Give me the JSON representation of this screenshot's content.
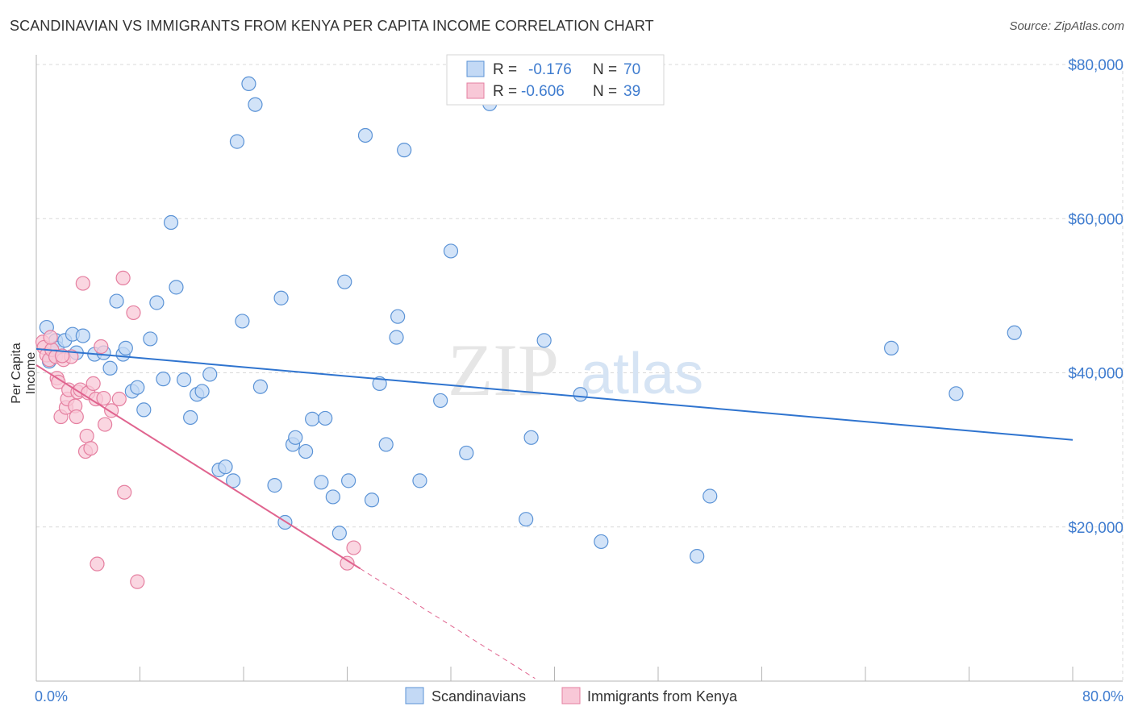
{
  "header": {
    "title": "SCANDINAVIAN VS IMMIGRANTS FROM KENYA PER CAPITA INCOME CORRELATION CHART",
    "source": "Source: ZipAtlas.com"
  },
  "watermark": {
    "zip": "ZIP",
    "atlas": "atlas"
  },
  "colors": {
    "blue_fill": "#c3d9f5",
    "blue_stroke": "#5b93d6",
    "blue_line": "#2f74cf",
    "pink_fill": "#f8c8d7",
    "pink_stroke": "#e57fa0",
    "pink_line": "#e0648f",
    "axis_text": "#3f7ccf",
    "grid": "#d9d9d9"
  },
  "legend": {
    "rows": [
      {
        "r_label": "R =",
        "r_value": "-0.176",
        "n_label": "N =",
        "n_value": "70"
      },
      {
        "r_label": "R =",
        "r_value": "-0.606",
        "n_label": "N =",
        "n_value": "39"
      }
    ]
  },
  "chart_data": {
    "type": "scatter",
    "title": "SCANDINAVIAN VS IMMIGRANTS FROM KENYA PER CAPITA INCOME CORRELATION CHART",
    "xlabel": "",
    "ylabel": "Per Capita Income",
    "xlim": [
      0,
      80
    ],
    "ylim": [
      0,
      80000
    ],
    "x_tick_labels": [
      "0.0%",
      "80.0%"
    ],
    "y_ticks": [
      20000,
      40000,
      60000,
      80000
    ],
    "y_tick_labels": [
      "$20,000",
      "$40,000",
      "$60,000",
      "$80,000"
    ],
    "grid": true,
    "legend_position": "top-center",
    "series": [
      {
        "name": "Scandinavians",
        "points": [
          [
            0.8,
            45900
          ],
          [
            1.0,
            41500
          ],
          [
            1.5,
            44200
          ],
          [
            1.6,
            43200
          ],
          [
            2.2,
            44200
          ],
          [
            2.8,
            45000
          ],
          [
            3.1,
            42600
          ],
          [
            3.6,
            44800
          ],
          [
            4.5,
            42400
          ],
          [
            5.2,
            42600
          ],
          [
            5.7,
            40600
          ],
          [
            6.2,
            49300
          ],
          [
            6.7,
            42400
          ],
          [
            6.9,
            43200
          ],
          [
            7.4,
            37600
          ],
          [
            7.8,
            38100
          ],
          [
            8.3,
            35200
          ],
          [
            8.8,
            44400
          ],
          [
            9.3,
            49100
          ],
          [
            9.8,
            39200
          ],
          [
            10.4,
            59500
          ],
          [
            10.8,
            51100
          ],
          [
            11.4,
            39100
          ],
          [
            11.9,
            34200
          ],
          [
            12.4,
            37200
          ],
          [
            12.8,
            37600
          ],
          [
            13.4,
            39800
          ],
          [
            14.1,
            27400
          ],
          [
            14.6,
            27800
          ],
          [
            15.2,
            26000
          ],
          [
            15.5,
            70000
          ],
          [
            15.9,
            46700
          ],
          [
            16.4,
            77500
          ],
          [
            16.9,
            74800
          ],
          [
            17.3,
            38200
          ],
          [
            18.4,
            25400
          ],
          [
            18.9,
            49700
          ],
          [
            19.2,
            20600
          ],
          [
            19.8,
            30700
          ],
          [
            20.0,
            31600
          ],
          [
            20.8,
            29800
          ],
          [
            21.3,
            34000
          ],
          [
            22.0,
            25800
          ],
          [
            22.3,
            34100
          ],
          [
            22.9,
            23900
          ],
          [
            23.4,
            19200
          ],
          [
            23.8,
            51800
          ],
          [
            24.1,
            26000
          ],
          [
            25.4,
            70800
          ],
          [
            25.9,
            23500
          ],
          [
            26.5,
            38600
          ],
          [
            27.0,
            30700
          ],
          [
            27.8,
            44600
          ],
          [
            27.9,
            47300
          ],
          [
            28.4,
            68900
          ],
          [
            29.6,
            26000
          ],
          [
            31.2,
            36400
          ],
          [
            32.0,
            55800
          ],
          [
            33.2,
            29600
          ],
          [
            35.0,
            74900
          ],
          [
            37.8,
            21000
          ],
          [
            38.2,
            31600
          ],
          [
            39.2,
            44200
          ],
          [
            42.0,
            37200
          ],
          [
            43.6,
            18100
          ],
          [
            51.0,
            16200
          ],
          [
            52.0,
            24000
          ],
          [
            66.0,
            43200
          ],
          [
            71.0,
            37300
          ],
          [
            75.5,
            45200
          ]
        ]
      },
      {
        "name": "Immigrants from Kenya",
        "points": [
          [
            0.5,
            44000
          ],
          [
            0.6,
            43300
          ],
          [
            0.8,
            42300
          ],
          [
            1.0,
            41700
          ],
          [
            1.2,
            43000
          ],
          [
            1.5,
            42100
          ],
          [
            1.6,
            39300
          ],
          [
            1.7,
            38800
          ],
          [
            1.9,
            34300
          ],
          [
            2.1,
            41700
          ],
          [
            2.3,
            35500
          ],
          [
            2.4,
            36600
          ],
          [
            2.5,
            37800
          ],
          [
            2.7,
            42100
          ],
          [
            3.0,
            35700
          ],
          [
            3.1,
            34300
          ],
          [
            3.2,
            37500
          ],
          [
            3.4,
            37800
          ],
          [
            3.6,
            51600
          ],
          [
            3.8,
            29800
          ],
          [
            3.9,
            31800
          ],
          [
            4.0,
            37400
          ],
          [
            4.2,
            30200
          ],
          [
            4.4,
            38600
          ],
          [
            4.6,
            36600
          ],
          [
            4.7,
            15200
          ],
          [
            5.0,
            43400
          ],
          [
            5.2,
            36700
          ],
          [
            5.3,
            33300
          ],
          [
            5.8,
            35100
          ],
          [
            6.4,
            36600
          ],
          [
            6.7,
            52300
          ],
          [
            6.8,
            24500
          ],
          [
            7.5,
            47800
          ],
          [
            7.8,
            12900
          ],
          [
            24.0,
            15300
          ],
          [
            24.5,
            17300
          ],
          [
            1.1,
            44600
          ],
          [
            2.0,
            42200
          ]
        ]
      }
    ],
    "trend_lines": [
      {
        "series": "Scandinavians",
        "x": [
          0,
          80
        ],
        "y": [
          43100,
          31300
        ]
      },
      {
        "series": "Immigrants from Kenya",
        "x": [
          0,
          25
        ],
        "y": [
          41000,
          14600
        ],
        "dashed_extension_to_x": 38.5
      }
    ]
  }
}
